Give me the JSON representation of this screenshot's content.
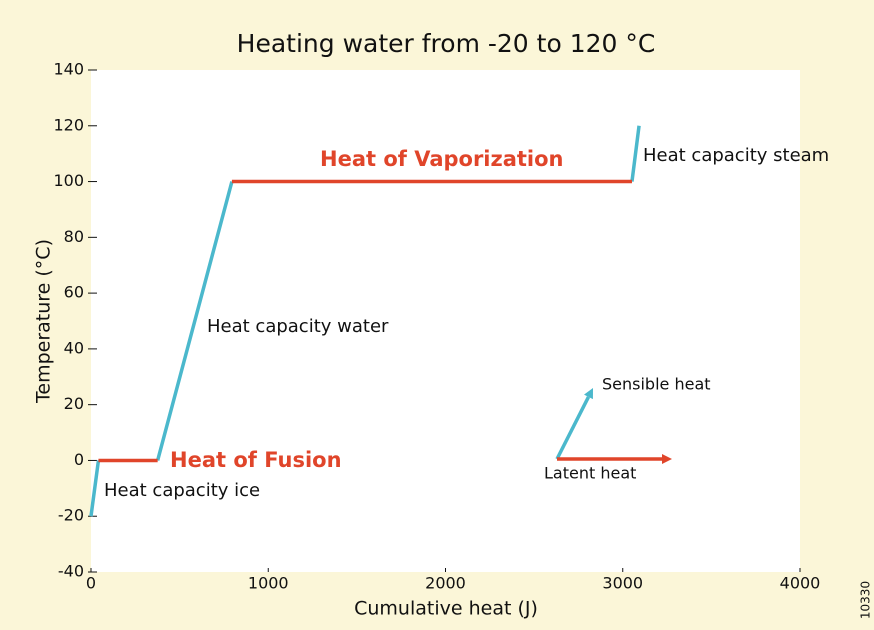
{
  "chart_data": {
    "type": "line",
    "title": "Heating water from -20 to 120 °C",
    "xlabel": "Cumulative heat (J)",
    "ylabel": "Temperature (°C)",
    "xlim": [
      0,
      4000
    ],
    "ylim": [
      -40,
      140
    ],
    "xticks": [
      0,
      1000,
      2000,
      3000,
      4000
    ],
    "yticks": [
      -40,
      -20,
      0,
      20,
      40,
      60,
      80,
      100,
      120,
      140
    ],
    "series": [
      {
        "name": "Sensible heat",
        "color": "#4bb8cc",
        "x": [
          0,
          42,
          null,
          376,
          795,
          null,
          3052,
          3092
        ],
        "values": [
          -20,
          0,
          null,
          0,
          100,
          null,
          100,
          120
        ]
      },
      {
        "name": "Latent heat",
        "color": "#e0452a",
        "x": [
          42,
          376,
          null,
          795,
          3052
        ],
        "values": [
          0,
          0,
          null,
          100,
          100
        ]
      }
    ],
    "annotations": [
      "Heat capacity ice",
      "Heat of Fusion",
      "Heat capacity water",
      "Heat of Vaporization",
      "Heat capacity steam"
    ],
    "figure_id": "10330"
  }
}
